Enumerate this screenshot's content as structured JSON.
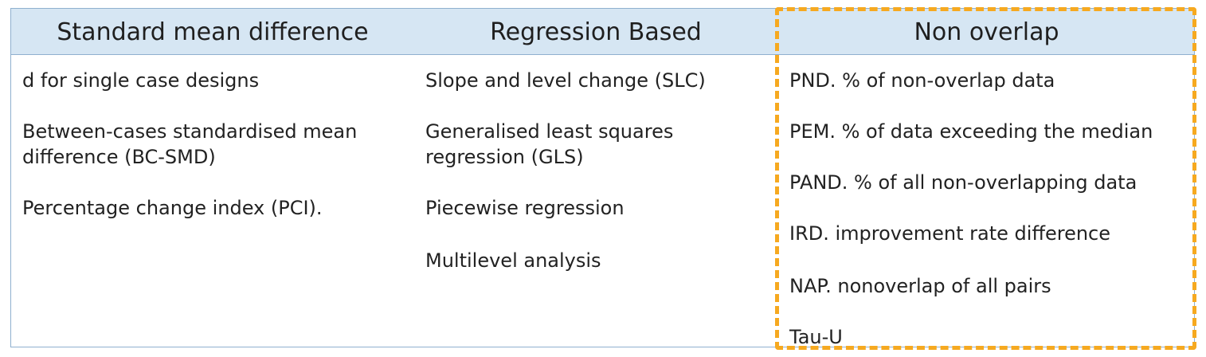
{
  "columns": [
    {
      "heading": "Standard mean difference",
      "items": [
        "d for single case designs",
        "Between-cases standardised mean difference (BC-SMD)",
        "Percentage change index (PCI)."
      ]
    },
    {
      "heading": "Regression Based",
      "items": [
        "Slope and level change (SLC)",
        "Generalised least squares regression (GLS)",
        "Piecewise regression",
        "Multilevel analysis"
      ]
    },
    {
      "heading": "Non overlap",
      "items": [
        "PND. % of non-overlap data",
        "PEM. % of data exceeding the median",
        "PAND. % of all non-overlapping data",
        "IRD. improvement rate difference",
        "NAP. nonoverlap of all pairs",
        "Tau-U"
      ]
    }
  ],
  "highlight_color": "#f6a920",
  "header_color": "#d6e6f3"
}
